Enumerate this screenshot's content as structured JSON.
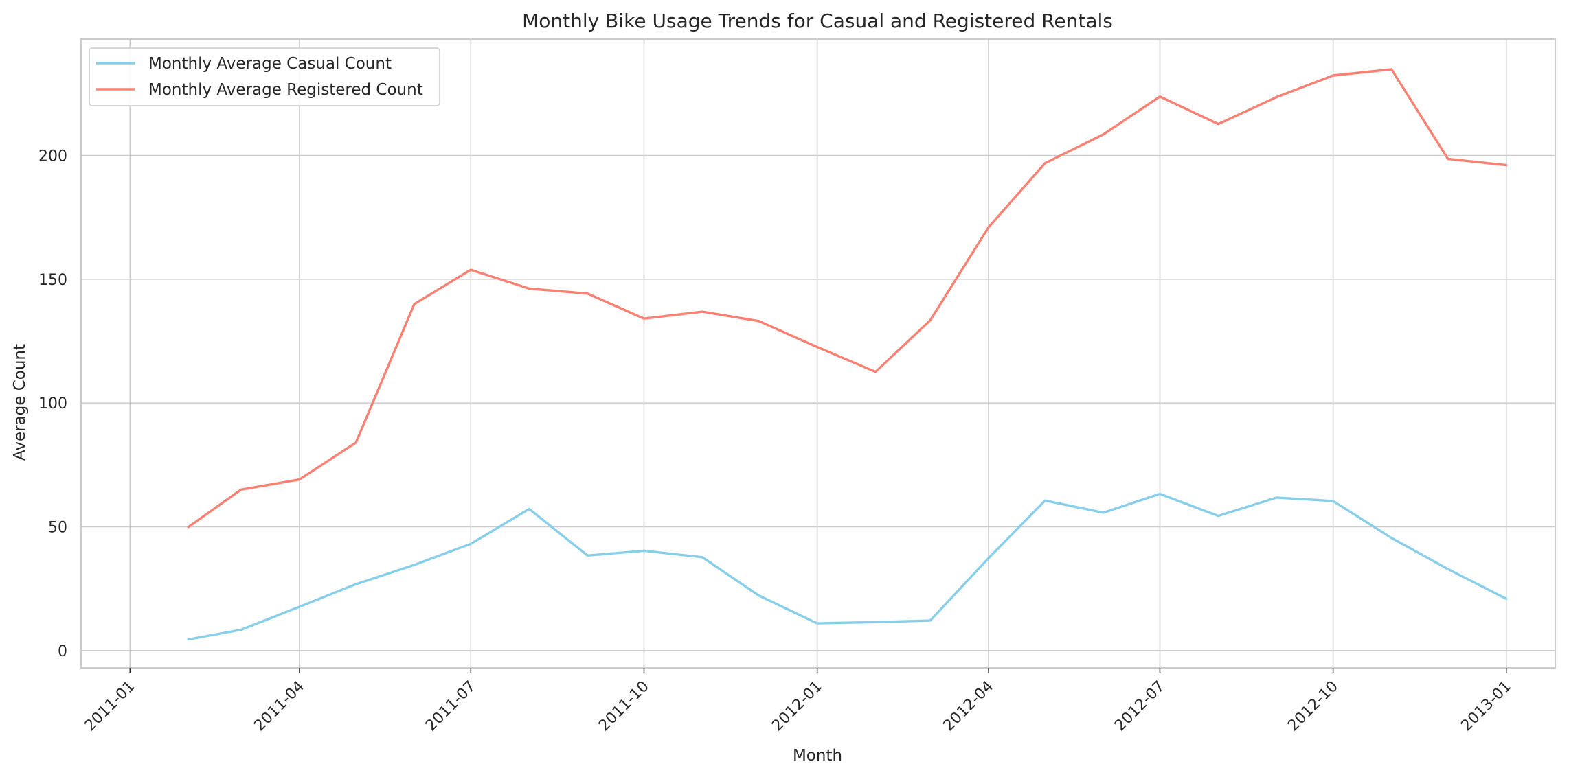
{
  "chart_data": {
    "type": "line",
    "title": "Monthly Bike Usage Trends for Casual and Registered Rentals",
    "xlabel": "Month",
    "ylabel": "Average Count",
    "x": [
      "2011-02",
      "2011-03",
      "2011-04",
      "2011-05",
      "2011-06",
      "2011-07",
      "2011-08",
      "2011-09",
      "2011-10",
      "2011-11",
      "2011-12",
      "2012-01",
      "2012-02",
      "2012-03",
      "2012-04",
      "2012-05",
      "2012-06",
      "2012-07",
      "2012-08",
      "2012-09",
      "2012-10",
      "2012-11",
      "2012-12",
      "2013-01"
    ],
    "series": [
      {
        "name": "Monthly Average Casual Count",
        "color": "#87ceeb",
        "values": [
          4.5,
          8.4,
          17.7,
          26.8,
          34.6,
          43.1,
          57.2,
          38.4,
          40.3,
          37.7,
          22.2,
          11.0,
          11.5,
          12.1,
          37.3,
          60.6,
          55.7,
          63.3,
          54.4,
          61.8,
          60.4,
          45.5,
          32.9,
          20.9
        ]
      },
      {
        "name": "Monthly Average Registered Count",
        "color": "#fa8072",
        "values": [
          49.9,
          65.0,
          69.1,
          84.0,
          140.0,
          153.8,
          146.2,
          144.2,
          134.1,
          136.9,
          133.1,
          122.6,
          112.6,
          133.4,
          171.0,
          196.9,
          208.5,
          223.8,
          212.7,
          223.6,
          232.3,
          234.8,
          198.6,
          196.1
        ]
      }
    ],
    "x_ticks": [
      "2011-01",
      "2011-04",
      "2011-07",
      "2011-10",
      "2012-01",
      "2012-04",
      "2012-07",
      "2012-10",
      "2013-01"
    ],
    "y_ticks": [
      0,
      50,
      100,
      150,
      200
    ],
    "xlim": [
      "2010-12-06",
      "2013-01-27"
    ],
    "ylim": [
      -7,
      247
    ],
    "grid": true,
    "legend_position": "top-left",
    "style": {
      "text_color": "#262626",
      "grid_color": "#cccccc",
      "axes_edge_color": "#cccccc",
      "background": "#ffffff"
    }
  }
}
